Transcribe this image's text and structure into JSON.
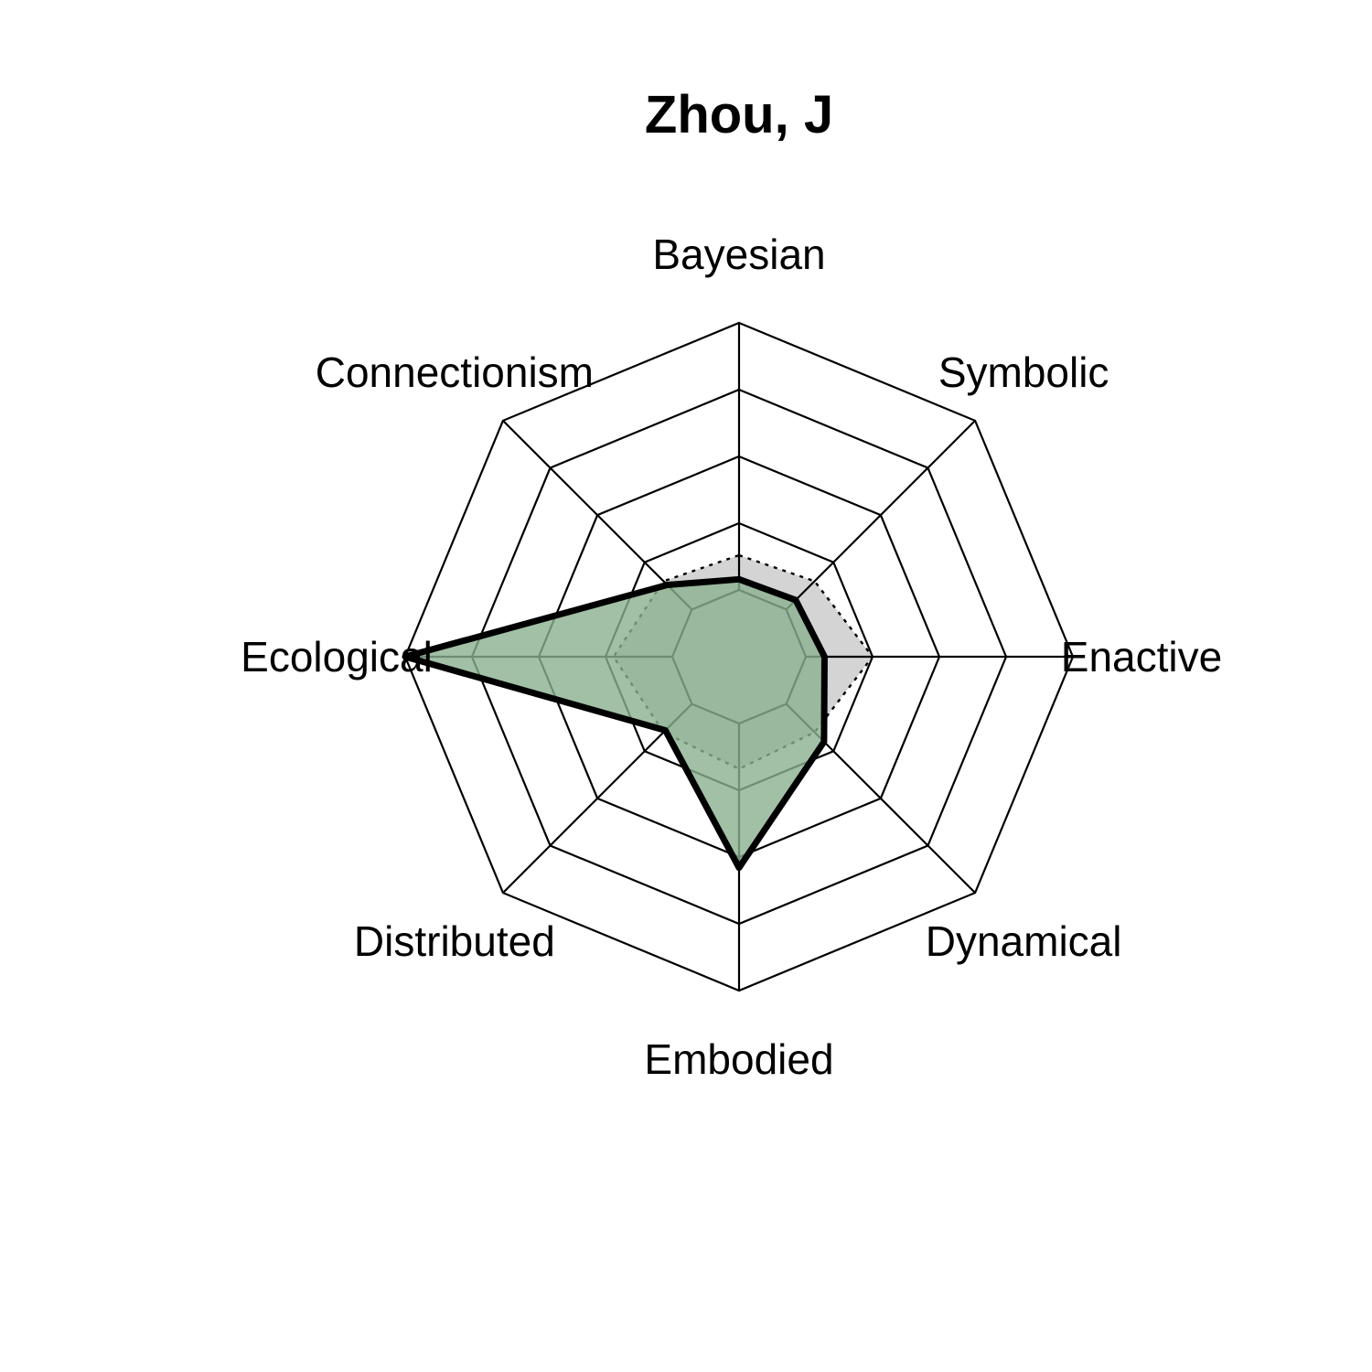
{
  "chart_data": {
    "type": "radar",
    "title": "Zhou, J",
    "axes": [
      "Bayesian",
      "Symbolic",
      "Enactive",
      "Dynamical",
      "Embodied",
      "Distributed",
      "Ecological",
      "Connectionism"
    ],
    "rmin": 0,
    "rmax": 1,
    "grid_levels": 5,
    "series": [
      {
        "role": "primary",
        "values": [
          0.04,
          0.05,
          0.07,
          0.2,
          0.54,
          0.14,
          1.0,
          0.13
        ],
        "fill": "#8ab08f",
        "fill_opacity": 0.8,
        "stroke": "#000000",
        "line_style": "solid"
      },
      {
        "role": "reference",
        "values": [
          0.13,
          0.15,
          0.25,
          0.15,
          0.17,
          0.15,
          0.22,
          0.15
        ],
        "fill": "#d4d4d4",
        "fill_opacity": 1,
        "stroke": "#000000",
        "line_style": "dotted"
      }
    ]
  }
}
